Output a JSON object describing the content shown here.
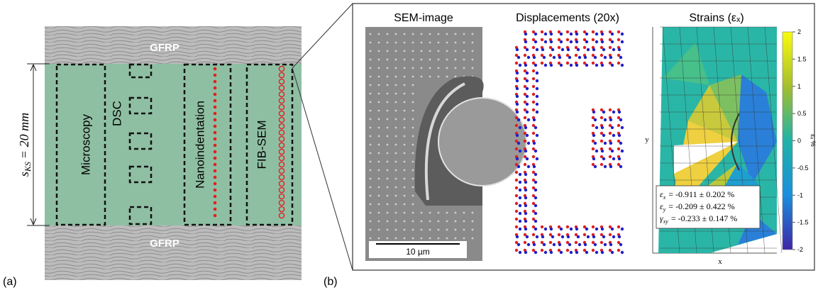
{
  "panel_a": {
    "label": "(a)",
    "top_layer": "GFRP",
    "bottom_layer": "GFRP",
    "dimension": {
      "symbol": "s",
      "sub": "KS",
      "text": "= 20 mm"
    },
    "columns": [
      "Microscopy",
      "DSC",
      "Nanoindentation",
      "FIB-SEM"
    ]
  },
  "panel_b": {
    "label": "(b)",
    "sem_title": "SEM-image",
    "scale_bar": "10 µm",
    "displacement_title": "Displacements (20x)",
    "strain_title": "Strains (εₓ)",
    "y_axis": "y",
    "x_axis": "x",
    "colorbar_label": "εₓ %",
    "colorbar_ticks": [
      2,
      1.5,
      1,
      0.5,
      0,
      -0.5,
      -1,
      -1.5,
      -2
    ],
    "strain_rows": [
      {
        "symbol": "ε",
        "sub": "x",
        "text": "= -0.911 ± 0.202 %"
      },
      {
        "symbol": "ε",
        "sub": "y",
        "text": "= -0.209 ± 0.422 %"
      },
      {
        "symbol": "γ",
        "sub": "xy",
        "text": "= -0.233 ± 0.147 %"
      }
    ]
  }
}
